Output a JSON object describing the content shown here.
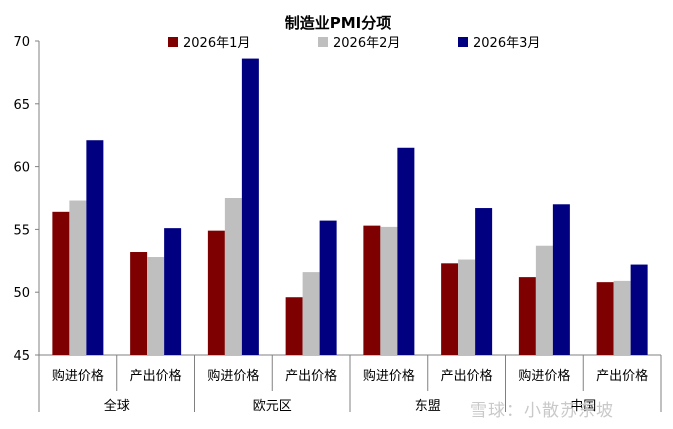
{
  "chart_data": {
    "type": "bar",
    "title": "制造业PMI分项",
    "ylim": [
      45,
      70
    ],
    "yticks": [
      45,
      50,
      55,
      60,
      65,
      70
    ],
    "groups": [
      {
        "region": "全球",
        "items": [
          "购进价格",
          "产出价格"
        ]
      },
      {
        "region": "欧元区",
        "items": [
          "购进价格",
          "产出价格"
        ]
      },
      {
        "region": "东盟",
        "items": [
          "购进价格",
          "产出价格"
        ]
      },
      {
        "region": "中国",
        "items": [
          "购进价格",
          "产出价格"
        ]
      }
    ],
    "series": [
      {
        "name": "2026年1月",
        "color": "#7f0000",
        "values": [
          56.4,
          53.2,
          54.9,
          49.6,
          55.3,
          52.3,
          51.2,
          50.8
        ]
      },
      {
        "name": "2026年2月",
        "color": "#bfbfbf",
        "values": [
          57.3,
          52.8,
          57.5,
          51.6,
          55.2,
          52.6,
          53.7,
          50.9
        ]
      },
      {
        "name": "2026年3月",
        "color": "#000080",
        "values": [
          62.1,
          55.1,
          68.6,
          55.7,
          61.5,
          56.7,
          57.0,
          52.2
        ]
      }
    ]
  },
  "watermark": "雪球：小散苏东坡"
}
